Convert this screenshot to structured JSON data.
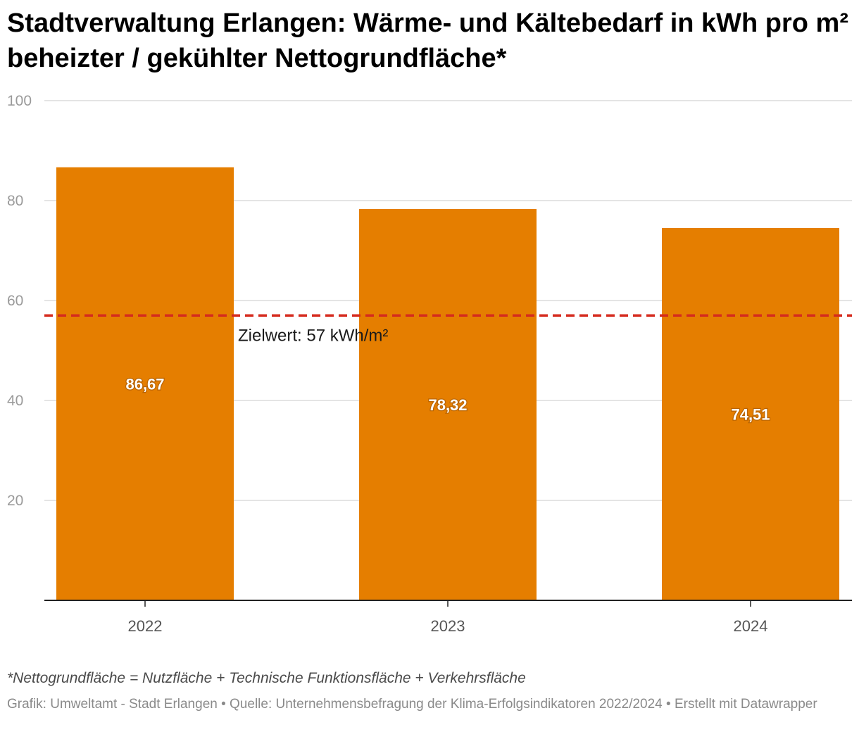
{
  "header": {
    "title": "Stadtverwaltung Erlangen: Wärme- und Kältebedarf in kWh pro m² beheizter / gekühlter Nettogrundfläche*"
  },
  "chart_data": {
    "type": "bar",
    "categories": [
      "2022",
      "2023",
      "2024"
    ],
    "values": [
      86.67,
      78.32,
      74.51
    ],
    "value_labels": [
      "86,67",
      "78,32",
      "74,51"
    ],
    "ylim": [
      0,
      100
    ],
    "yticks": [
      20,
      40,
      60,
      80,
      100
    ],
    "grid": true,
    "bar_color": "#e57e00",
    "reference_line": {
      "value": 57,
      "label": "Zielwert: 57 kWh/m²",
      "color": "#d52b1e",
      "style": "dashed"
    }
  },
  "footer": {
    "note": "*Nettogrundfläche = Nutzfläche + Technische Funktionsfläche + Verkehrsfläche",
    "credits": "Grafik: Umweltamt - Stadt Erlangen  • Quelle: Unternehmensbefragung der Klima-Erfolgsindikatoren 2022/2024 • Erstellt mit Datawrapper"
  }
}
